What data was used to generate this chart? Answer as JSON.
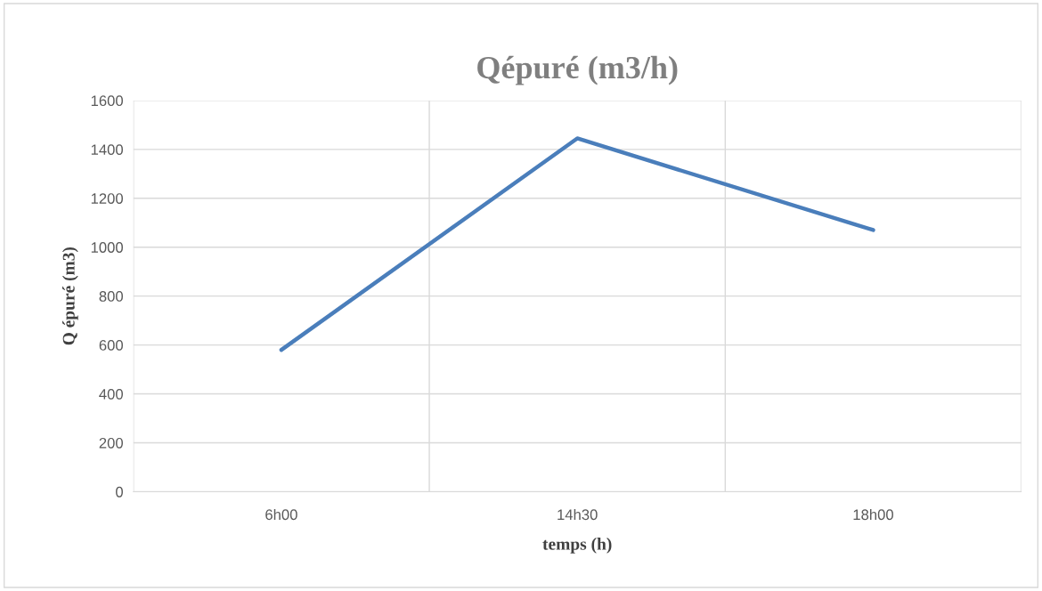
{
  "chart_data": {
    "type": "line",
    "title": "Qépuré (m3/h)",
    "xlabel": "temps (h)",
    "ylabel": "Q épuré (m3)",
    "categories": [
      "6h00",
      "14h30",
      "18h00"
    ],
    "series": [
      {
        "color": "#4a7ebb",
        "values": [
          580,
          1445,
          1070
        ]
      }
    ],
    "ylim": [
      0,
      1600
    ],
    "yticks": [
      0,
      200,
      400,
      600,
      800,
      1000,
      1200,
      1400,
      1600
    ],
    "grid": true,
    "marker": "none",
    "line_style": "solid"
  }
}
